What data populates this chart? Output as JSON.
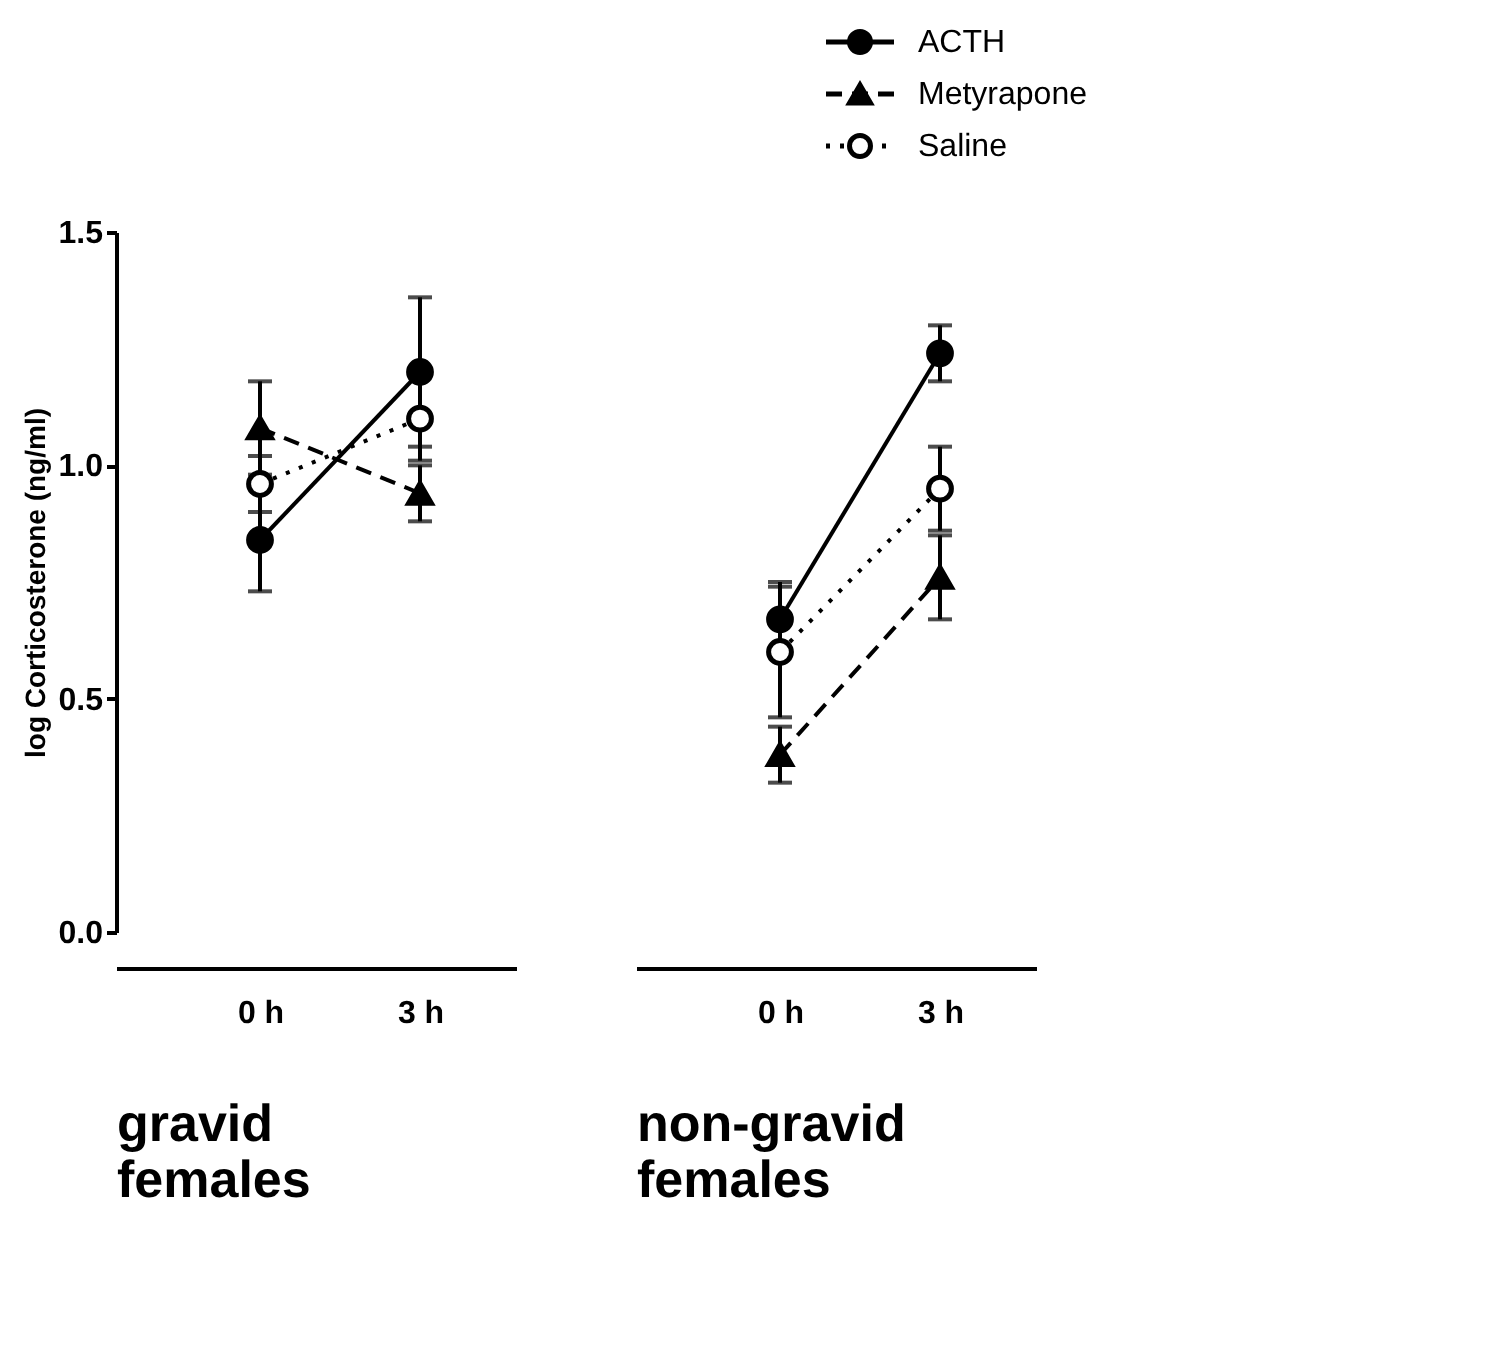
{
  "chart_data": [
    {
      "type": "line",
      "categories": [
        "0 h",
        "3 h"
      ],
      "xlabel": "gravid females",
      "ylabel": "log Corticosterone (ng/ml)",
      "ylim": [
        0,
        1.5
      ],
      "yticks": [
        {
          "value": 0,
          "label": "0.0"
        },
        0.5,
        {
          "value": 1,
          "label": "1.0"
        },
        1.5
      ],
      "series": [
        {
          "color": "#000000",
          "marker": "circle",
          "line_style": "solid",
          "values": [
            0.84,
            1.2
          ],
          "errors": [
            0.11,
            0.16
          ]
        },
        {
          "color": "#000000",
          "marker": "triangle",
          "line_style": "dashed",
          "values": [
            1.08,
            0.94
          ],
          "errors": [
            0.1,
            0.06
          ]
        },
        {
          "color": "#000000",
          "marker": "open circle",
          "line_style": "dotted",
          "values": [
            0.96,
            1.1
          ],
          "errors": [
            0.06,
            0.09
          ]
        }
      ]
    },
    {
      "type": "line",
      "categories": [
        "0 h",
        "3 h"
      ],
      "xlabel": "non-gravid females",
      "ylim": [
        0,
        1.5
      ],
      "tick_labels": "x",
      "legend": "top right",
      "series": [
        {
          "name": "ACTH",
          "color": "#000000",
          "marker": "circle",
          "line_style": "solid",
          "values": [
            0.67,
            1.24
          ],
          "errors": [
            0.08,
            0.06
          ]
        },
        {
          "name": "Metyrapone",
          "color": "#000000",
          "marker": "triangle",
          "line_style": "dashed",
          "values": [
            0.38,
            0.76
          ],
          "errors": [
            0.06,
            0.09
          ]
        },
        {
          "name": "Saline",
          "color": "#000000",
          "marker": "open circle",
          "line_style": "dotted",
          "values": [
            0.6,
            0.95
          ],
          "errors": [
            0.14,
            0.09
          ]
        }
      ]
    }
  ]
}
